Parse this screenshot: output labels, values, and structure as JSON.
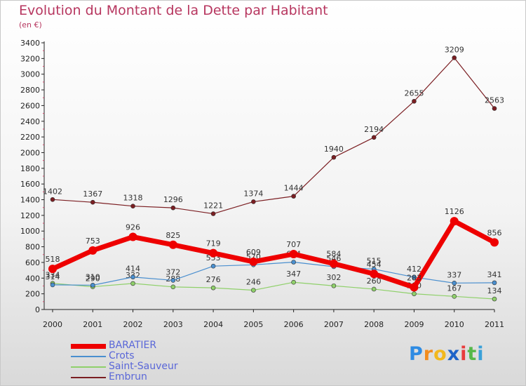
{
  "title": "Evolution du Montant de la Dette par Habitant",
  "subtitle": "(en €)",
  "logo": {
    "letters": [
      "P",
      "r",
      "o",
      "x",
      "i",
      "t",
      "i"
    ],
    "colors": [
      "#2e8be3",
      "#f28c1e",
      "#f2b81e",
      "#1e63c8",
      "#e83c3c",
      "#55b84a",
      "#3aa0d8"
    ]
  },
  "chart_data": {
    "type": "line",
    "x": [
      "2000",
      "2001",
      "2002",
      "2003",
      "2004",
      "2005",
      "2006",
      "2007",
      "2008",
      "2009",
      "2010",
      "2011"
    ],
    "ylim": [
      0,
      3400
    ],
    "yticks": [
      "0",
      "200",
      "400",
      "600",
      "800",
      "1000",
      "1200",
      "1400",
      "1600",
      "1800",
      "2000",
      "2200",
      "2400",
      "2600",
      "2800",
      "3000",
      "3200",
      "3400"
    ],
    "grid": false,
    "legend_position": "bottom-left",
    "series": [
      {
        "name": "Embrun",
        "color": "#7b1e22",
        "values": [
          1402,
          1367,
          1318,
          1296,
          1221,
          1374,
          1444,
          1940,
          2194,
          2655,
          3209,
          2563
        ]
      },
      {
        "name": "Saint-Sauveur",
        "color": "#8fd06a",
        "values": [
          334,
          290,
          332,
          288,
          276,
          246,
          347,
          302,
          260,
          200,
          167,
          134
        ]
      },
      {
        "name": "Crots",
        "color": "#4a8fcf",
        "values": [
          314,
          310,
          414,
          372,
          553,
          570,
          604,
          546,
          515,
          412,
          337,
          341
        ]
      },
      {
        "name": "BARATIER",
        "color": "#ee0000",
        "values": [
          518,
          753,
          926,
          825,
          719,
          609,
          707,
          584,
          454,
          283,
          1126,
          856
        ]
      }
    ],
    "data_labels": [
      {
        "series": "Embrun",
        "labels": [
          "1402",
          "1367",
          "1318",
          "1296",
          "1221",
          "1374",
          "1444",
          "1940",
          "2194",
          "2655",
          "3209",
          "2563"
        ]
      },
      {
        "series": "Saint-Sauveur",
        "labels": [
          "334",
          "290",
          "332",
          "288",
          "276",
          "246",
          "347",
          "302",
          "260",
          "200",
          "167",
          "134"
        ]
      },
      {
        "series": "Crots",
        "labels": [
          "314",
          "310",
          "414",
          "372",
          "553",
          "570",
          "604",
          "546",
          "515",
          "412",
          "337",
          "341"
        ]
      },
      {
        "series": "BARATIER",
        "labels": [
          "518",
          "753",
          "926",
          "825",
          "719",
          "609",
          "707",
          "584",
          "454",
          "283",
          "1126",
          "856"
        ]
      }
    ]
  },
  "legend_order": [
    "BARATIER",
    "Crots",
    "Saint-Sauveur",
    "Embrun"
  ]
}
